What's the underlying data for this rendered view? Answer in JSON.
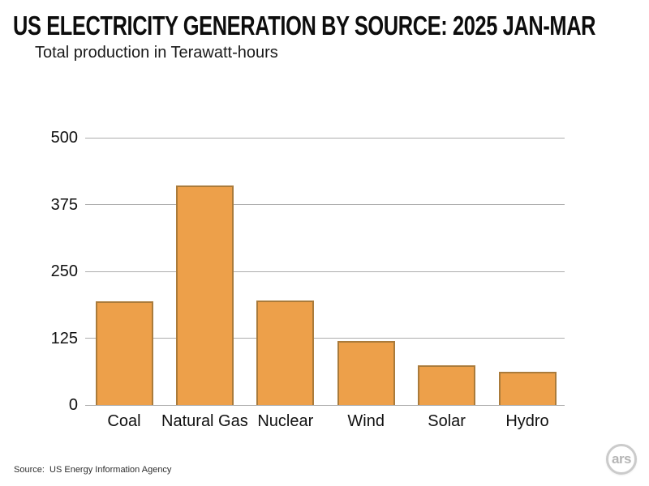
{
  "header": {
    "title": "US ELECTRICITY GENERATION BY SOURCE: 2025 JAN-MAR",
    "subtitle": "Total production in Terawatt-hours"
  },
  "chart_data": {
    "type": "bar",
    "title": "US ELECTRICITY GENERATION BY SOURCE: 2025 JAN-MAR",
    "subtitle": "Total production in Terawatt-hours",
    "categories": [
      "Coal",
      "Natural Gas",
      "Nuclear",
      "Wind",
      "Solar",
      "Hydro"
    ],
    "values": [
      194,
      410,
      195,
      119,
      74,
      62
    ],
    "unit": "Terawatt-hours",
    "ylim": [
      0,
      500
    ],
    "yticks": [
      0,
      125,
      250,
      375,
      500
    ],
    "grid": true,
    "legend": "none",
    "bar_color": "#EDA04A",
    "bar_border_color": "#AA7B3B",
    "gridline_color": "#adadad"
  },
  "footer": {
    "source": "Source:  US Energy Information Agency",
    "logo_text": "ars"
  }
}
